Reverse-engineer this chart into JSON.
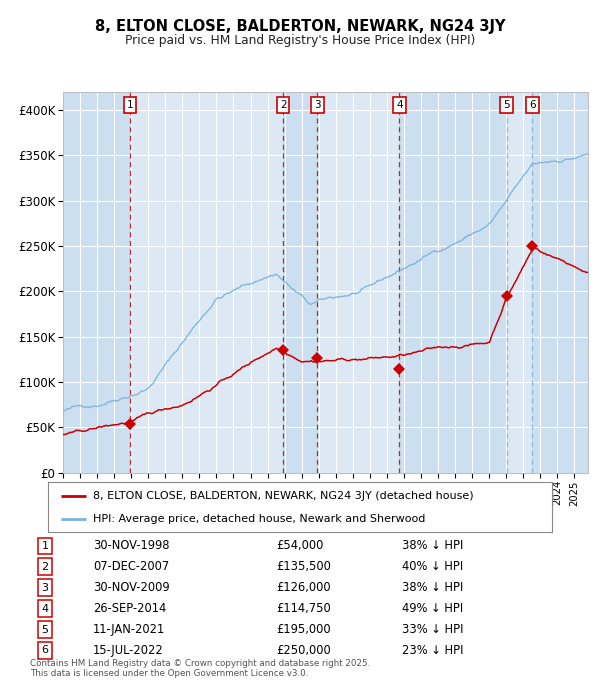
{
  "title": "8, ELTON CLOSE, BALDERTON, NEWARK, NG24 3JY",
  "subtitle": "Price paid vs. HM Land Registry's House Price Index (HPI)",
  "ylim": [
    0,
    420000
  ],
  "yticks": [
    0,
    50000,
    100000,
    150000,
    200000,
    250000,
    300000,
    350000,
    400000
  ],
  "ytick_labels": [
    "£0",
    "£50K",
    "£100K",
    "£150K",
    "£200K",
    "£250K",
    "£300K",
    "£350K",
    "£400K"
  ],
  "background_color": "#ffffff",
  "plot_bg_color": "#dce9f5",
  "grid_color": "#ffffff",
  "hpi_color": "#7ab3d9",
  "price_color": "#cc0000",
  "transactions": [
    {
      "num": 1,
      "date_x": 1998.92,
      "price": 54000,
      "pct": "38%",
      "date_str": "30-NOV-1998",
      "price_str": "£54,000"
    },
    {
      "num": 2,
      "date_x": 2007.92,
      "price": 135500,
      "pct": "40%",
      "date_str": "07-DEC-2007",
      "price_str": "£135,500"
    },
    {
      "num": 3,
      "date_x": 2009.92,
      "price": 126000,
      "pct": "38%",
      "date_str": "30-NOV-2009",
      "price_str": "£126,000"
    },
    {
      "num": 4,
      "date_x": 2014.73,
      "price": 114750,
      "pct": "49%",
      "date_str": "26-SEP-2014",
      "price_str": "£114,750"
    },
    {
      "num": 5,
      "date_x": 2021.03,
      "price": 195000,
      "pct": "33%",
      "date_str": "11-JAN-2021",
      "price_str": "£195,000"
    },
    {
      "num": 6,
      "date_x": 2022.54,
      "price": 250000,
      "pct": "23%",
      "date_str": "15-JUL-2022",
      "price_str": "£250,000"
    }
  ],
  "legend_entries": [
    "8, ELTON CLOSE, BALDERTON, NEWARK, NG24 3JY (detached house)",
    "HPI: Average price, detached house, Newark and Sherwood"
  ],
  "footer": "Contains HM Land Registry data © Crown copyright and database right 2025.\nThis data is licensed under the Open Government Licence v3.0.",
  "xmin": 1995.0,
  "xmax": 2025.8
}
